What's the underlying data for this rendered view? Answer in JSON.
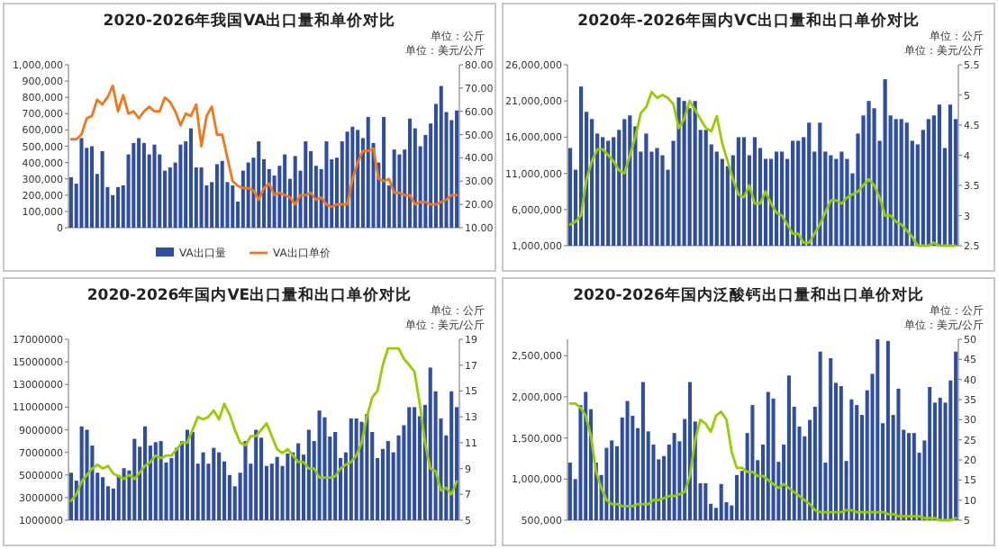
{
  "chart_data": [
    {
      "type": "bar",
      "title": "2020-2026年我国VA出口量和单价对比",
      "annotations": [
        "单位：公斤",
        "单位：美元/公斤"
      ],
      "legend": "bottom",
      "categories": [
        null,
        null,
        null,
        null,
        null,
        null,
        null,
        null,
        null,
        null,
        null,
        null,
        null,
        null,
        null,
        null,
        null,
        null,
        null,
        null,
        null,
        null,
        null,
        null,
        null,
        null,
        null,
        null,
        null,
        null,
        null,
        null,
        null,
        null,
        null,
        null,
        null,
        null,
        null,
        null,
        null,
        null,
        null,
        null,
        null,
        null,
        null,
        null,
        null,
        null,
        null,
        null,
        null,
        null,
        null,
        null,
        null,
        null,
        null,
        null,
        null,
        null,
        null,
        null,
        null,
        null,
        null,
        null,
        null,
        null,
        null,
        null,
        null,
        null,
        null
      ],
      "ylim": [
        0,
        1000000
      ],
      "yticks": [
        {
          "value": 0,
          "label": "0"
        },
        {
          "value": 100000,
          "label": "100,000"
        },
        {
          "value": 200000,
          "label": "200,000"
        },
        {
          "value": 300000,
          "label": "300,000"
        },
        {
          "value": 400000,
          "label": "400,000"
        },
        {
          "value": 500000,
          "label": "500,000"
        },
        {
          "value": 600000,
          "label": "600,000"
        },
        {
          "value": 700000,
          "label": "700,000"
        },
        {
          "value": 800000,
          "label": "800,000"
        },
        {
          "value": 900000,
          "label": "900,000"
        },
        {
          "value": 1000000,
          "label": "1,000,000"
        }
      ],
      "y2lim": [
        10,
        80
      ],
      "y2ticks": [
        {
          "value": 10,
          "label": "10.00"
        },
        {
          "value": 20,
          "label": "20.00"
        },
        {
          "value": 30,
          "label": "30.00"
        },
        {
          "value": 40,
          "label": "40.00"
        },
        {
          "value": 50,
          "label": "50.00"
        },
        {
          "value": 60,
          "label": "60.00"
        },
        {
          "value": 70,
          "label": "70.00"
        },
        {
          "value": 80,
          "label": "80.00"
        }
      ],
      "series": [
        {
          "name": "VA出口量",
          "color": "#2f4f9e",
          "values": [
            310000,
            270000,
            550000,
            490000,
            500000,
            330000,
            470000,
            250000,
            200000,
            250000,
            260000,
            450000,
            520000,
            550000,
            520000,
            450000,
            510000,
            450000,
            350000,
            370000,
            400000,
            510000,
            530000,
            610000,
            370000,
            370000,
            260000,
            280000,
            390000,
            410000,
            280000,
            260000,
            160000,
            350000,
            400000,
            430000,
            530000,
            420000,
            360000,
            320000,
            380000,
            450000,
            300000,
            440000,
            350000,
            530000,
            470000,
            380000,
            360000,
            530000,
            420000,
            430000,
            530000,
            590000,
            620000,
            600000,
            550000,
            680000,
            520000,
            400000,
            680000,
            260000,
            480000,
            450000,
            480000,
            670000,
            610000,
            500000,
            570000,
            640000,
            760000,
            870000,
            710000,
            660000,
            720000
          ]
        },
        {
          "name": "VA出口单价",
          "type": "line",
          "axis": "y2",
          "color": "#f07818",
          "values": [
            48,
            48,
            50,
            57,
            58,
            65,
            63,
            66,
            71,
            60,
            67,
            59,
            60,
            57,
            60,
            62,
            60,
            60,
            66,
            64,
            60,
            54,
            59,
            58,
            63,
            45,
            58,
            62,
            50,
            50,
            40,
            30,
            28,
            27,
            27,
            26,
            22,
            27,
            29,
            24,
            25,
            24,
            23,
            20,
            24,
            24,
            25,
            22,
            23,
            20,
            19,
            20,
            20,
            20,
            31,
            38,
            43,
            43,
            44,
            31,
            30,
            31,
            25,
            25,
            24,
            24,
            20,
            21,
            21,
            20,
            20,
            21,
            22,
            24,
            24
          ]
        }
      ]
    },
    {
      "type": "bar",
      "title": "2020年-2026年国内VC出口量和出口单价对比",
      "annotations": [
        "单位：公斤",
        "单位：美元/公斤"
      ],
      "categories": [
        null,
        null,
        null,
        null,
        null,
        null,
        null,
        null,
        null,
        null,
        null,
        null,
        null,
        null,
        null,
        null,
        null,
        null,
        null,
        null,
        null,
        null,
        null,
        null,
        null,
        null,
        null,
        null,
        null,
        null,
        null,
        null,
        null,
        null,
        null,
        null,
        null,
        null,
        null,
        null,
        null,
        null,
        null,
        null,
        null,
        null,
        null,
        null,
        null,
        null,
        null,
        null,
        null,
        null,
        null,
        null,
        null,
        null,
        null,
        null,
        null,
        null,
        null,
        null,
        null,
        null,
        null,
        null,
        null,
        null,
        null,
        null
      ],
      "ylim": [
        1000000,
        26000000
      ],
      "yticks": [
        {
          "value": 1000000,
          "label": "1,000,000"
        },
        {
          "value": 6000000,
          "label": "6,000,000"
        },
        {
          "value": 11000000,
          "label": "11,000,000"
        },
        {
          "value": 16000000,
          "label": "16,000,000"
        },
        {
          "value": 21000000,
          "label": "21,000,000"
        },
        {
          "value": 26000000,
          "label": "26,000,000"
        }
      ],
      "y2lim": [
        2.5,
        5.5
      ],
      "y2ticks": [
        2.5,
        3,
        3.5,
        4,
        4.5,
        5,
        5.5
      ],
      "series": [
        {
          "color": "#2f4f9e",
          "values": [
            14500000,
            11500000,
            23000000,
            19500000,
            18500000,
            16500000,
            16000000,
            15500000,
            16000000,
            17000000,
            18500000,
            19000000,
            17500000,
            14000000,
            16500000,
            14000000,
            14500000,
            13500000,
            11500000,
            15500000,
            21500000,
            21000000,
            20000000,
            21000000,
            17000000,
            17000000,
            15000000,
            14000000,
            13000000,
            12000000,
            13500000,
            16000000,
            16000000,
            13500000,
            16000000,
            14500000,
            13000000,
            13000000,
            14000000,
            14000000,
            13000000,
            15500000,
            15500000,
            16000000,
            18000000,
            14000000,
            18000000,
            14000000,
            13500000,
            13000000,
            14000000,
            13000000,
            11000000,
            16500000,
            19000000,
            21000000,
            20000000,
            15500000,
            24000000,
            19000000,
            18500000,
            18500000,
            18000000,
            15500000,
            15000000,
            17000000,
            18500000,
            19000000,
            20500000,
            14500000,
            20500000,
            18500000
          ]
        },
        {
          "type": "line",
          "axis": "y2",
          "color": "#99cc00",
          "values": [
            2.85,
            2.9,
            3,
            3.6,
            3.9,
            4.1,
            4.1,
            4,
            3.9,
            3.75,
            3.7,
            4,
            4.3,
            4.7,
            4.8,
            5.05,
            4.95,
            5,
            4.95,
            4.85,
            4.45,
            4.6,
            4.9,
            4.75,
            4.6,
            4.45,
            4.4,
            4.65,
            4.2,
            3.9,
            3.6,
            3.35,
            3.3,
            3.5,
            3.2,
            3.2,
            3.4,
            3.2,
            3.05,
            3,
            2.85,
            2.7,
            2.7,
            2.55,
            2.55,
            2.7,
            2.85,
            3.05,
            3.25,
            3.25,
            3.2,
            3.3,
            3.35,
            3.4,
            3.5,
            3.6,
            3.5,
            3.3,
            3,
            3,
            2.9,
            2.85,
            2.75,
            2.65,
            2.5,
            2.5,
            2.5,
            2.55,
            2.5,
            2.5,
            2.5,
            2.5
          ]
        }
      ]
    },
    {
      "type": "bar",
      "title": "2020-2026年国内VE出口量和出口单价对比",
      "annotations": [
        "单位：公斤",
        "单位：美元/公斤"
      ],
      "categories": [
        null,
        null,
        null,
        null,
        null,
        null,
        null,
        null,
        null,
        null,
        null,
        null,
        null,
        null,
        null,
        null,
        null,
        null,
        null,
        null,
        null,
        null,
        null,
        null,
        null,
        null,
        null,
        null,
        null,
        null,
        null,
        null,
        null,
        null,
        null,
        null,
        null,
        null,
        null,
        null,
        null,
        null,
        null,
        null,
        null,
        null,
        null,
        null,
        null,
        null,
        null,
        null,
        null,
        null,
        null,
        null,
        null,
        null,
        null,
        null,
        null,
        null,
        null,
        null,
        null,
        null,
        null,
        null,
        null,
        null,
        null,
        null,
        null,
        null
      ],
      "ylim": [
        1000000,
        17000000
      ],
      "yticks": [
        1000000,
        3000000,
        5000000,
        7000000,
        9000000,
        11000000,
        13000000,
        15000000,
        17000000
      ],
      "y2lim": [
        5,
        19
      ],
      "y2ticks": [
        5,
        7,
        9,
        11,
        13,
        15,
        17,
        19
      ],
      "series": [
        {
          "color": "#2f4f9e",
          "values": [
            5200000,
            4500000,
            9300000,
            9000000,
            7600000,
            5200000,
            4800000,
            4000000,
            3800000,
            5000000,
            5600000,
            5400000,
            8200000,
            7500000,
            9300000,
            7600000,
            7900000,
            8000000,
            6100000,
            6500000,
            7400000,
            8000000,
            9000000,
            8800000,
            6000000,
            7000000,
            6000000,
            7400000,
            7000000,
            6200000,
            5000000,
            4000000,
            5200000,
            8000000,
            6000000,
            9000000,
            8300000,
            5800000,
            6000000,
            6600000,
            5800000,
            6900000,
            7000000,
            7800000,
            6800000,
            9000000,
            8000000,
            10700000,
            10100000,
            8400000,
            8800000,
            6500000,
            7000000,
            10000000,
            10000000,
            9700000,
            10400000,
            8800000,
            6500000,
            7300000,
            8000000,
            7000000,
            8500000,
            9400000,
            11000000,
            11000000,
            10200000,
            11200000,
            14500000,
            12400000,
            10000000,
            8500000,
            12400000,
            11000000
          ]
        },
        {
          "type": "line",
          "axis": "y2",
          "color": "#99cc00",
          "values": [
            6.5,
            7,
            8,
            8.5,
            9,
            9.3,
            9,
            9.2,
            8.6,
            8.4,
            8.2,
            8.5,
            8.2,
            8.7,
            9.2,
            9.5,
            10,
            9.8,
            10,
            10,
            10.5,
            11,
            11,
            12,
            13,
            12.8,
            13,
            13.5,
            12.8,
            14,
            13.2,
            12,
            11,
            10.8,
            11.5,
            11.5,
            12,
            12.5,
            11.5,
            10.5,
            10.2,
            10.5,
            10,
            9.5,
            9.5,
            9,
            9,
            8.3,
            8.3,
            8.3,
            8.4,
            9,
            9.3,
            9.5,
            10,
            11,
            13,
            14.5,
            15,
            17,
            18.3,
            18.3,
            18.3,
            17.5,
            17,
            16.5,
            14,
            11,
            9,
            8.8,
            7.3,
            7.5,
            7,
            8
          ]
        }
      ]
    },
    {
      "type": "bar",
      "title": "2020-2026年国内泛酸钙出口量和出口单价对比",
      "annotations": [
        "单位：公斤",
        "单位：美元/公斤"
      ],
      "categories": [
        null,
        null,
        null,
        null,
        null,
        null,
        null,
        null,
        null,
        null,
        null,
        null,
        null,
        null,
        null,
        null,
        null,
        null,
        null,
        null,
        null,
        null,
        null,
        null,
        null,
        null,
        null,
        null,
        null,
        null,
        null,
        null,
        null,
        null,
        null,
        null,
        null,
        null,
        null,
        null,
        null,
        null,
        null,
        null,
        null,
        null,
        null,
        null,
        null,
        null,
        null,
        null,
        null,
        null,
        null,
        null,
        null,
        null,
        null,
        null,
        null,
        null,
        null,
        null,
        null,
        null,
        null,
        null,
        null,
        null,
        null,
        null,
        null,
        null,
        null
      ],
      "ylim": [
        500000,
        2700000
      ],
      "yticks": [
        {
          "value": 500000,
          "label": "500,000"
        },
        {
          "value": 1000000,
          "label": "1,000,000"
        },
        {
          "value": 1500000,
          "label": "1,500,000"
        },
        {
          "value": 2000000,
          "label": "2,000,000"
        },
        {
          "value": 2500000,
          "label": "2,500,000"
        }
      ],
      "y2lim": [
        5,
        50
      ],
      "y2ticks": [
        5,
        10,
        15,
        20,
        25,
        30,
        35,
        40,
        45,
        50
      ],
      "series": [
        {
          "color": "#2f4f9e",
          "values": [
            1200000,
            1000000,
            1900000,
            2060000,
            1850000,
            1200000,
            1050000,
            1380000,
            1470000,
            1400000,
            1750000,
            1950000,
            1770000,
            1620000,
            2180000,
            1580000,
            1420000,
            1240000,
            1280000,
            1420000,
            1560000,
            1460000,
            1730000,
            2180000,
            1700000,
            950000,
            950000,
            700000,
            650000,
            940000,
            720000,
            680000,
            1050000,
            1100000,
            1560000,
            1900000,
            1230000,
            1420000,
            2060000,
            1980000,
            1210000,
            1420000,
            2260000,
            1880000,
            1640000,
            1520000,
            1720000,
            1880000,
            2550000,
            1200000,
            2470000,
            2170000,
            2130000,
            1220000,
            1970000,
            1900000,
            1780000,
            2080000,
            2280000,
            2700000,
            1680000,
            2680000,
            1780000,
            2100000,
            1600000,
            1560000,
            1560000,
            1320000,
            1470000,
            2120000,
            1930000,
            1990000,
            1930000,
            2200000,
            2550000
          ]
        },
        {
          "type": "line",
          "axis": "y2",
          "color": "#99cc00",
          "values": [
            34,
            34,
            33,
            31,
            26,
            17,
            13,
            10,
            9,
            9,
            8.5,
            8.5,
            8.5,
            9,
            9,
            9,
            10,
            10,
            10.5,
            11,
            11,
            11.5,
            12,
            16,
            25,
            30,
            29,
            27,
            31,
            32,
            30,
            22,
            18,
            18,
            17,
            17,
            16,
            16,
            15,
            14,
            13,
            14,
            13,
            12,
            11,
            10,
            9,
            7.5,
            7,
            7,
            7,
            7,
            7,
            7.5,
            7.5,
            7,
            7,
            7,
            7,
            7,
            7,
            6.5,
            6.5,
            6,
            6,
            6,
            6,
            6,
            5.5,
            5.5,
            5.5,
            5,
            5,
            5,
            5.5
          ]
        }
      ]
    }
  ]
}
